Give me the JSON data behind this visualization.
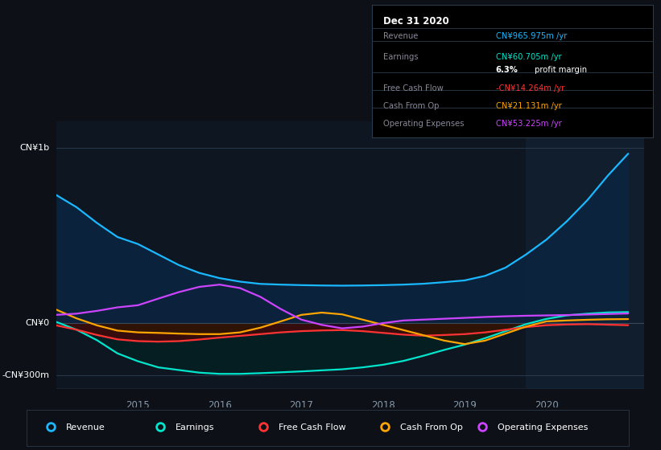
{
  "background_color": "#0d1117",
  "plot_bg_color": "#0e1621",
  "highlight_bg_color": "#111e2e",
  "x_min": 2014.0,
  "x_max": 2021.2,
  "y_min": -380,
  "y_max": 1150,
  "x_ticks": [
    2015,
    2016,
    2017,
    2018,
    2019,
    2020
  ],
  "ylabel_top": "CN¥1b",
  "ylabel_zero": "CN¥0",
  "ylabel_bottom": "-CN¥300m",
  "y_top_val": 1000,
  "y_zero_val": 0,
  "y_bottom_val": -300,
  "highlight_x_start": 2019.75,
  "info_box": {
    "title": "Dec 31 2020",
    "rows": [
      {
        "label": "Revenue",
        "value": "CN¥965.975m /yr",
        "value_color": "#1ab8ff"
      },
      {
        "label": "Earnings",
        "value": "CN¥60.705m /yr",
        "value_color": "#00e5cc"
      },
      {
        "label": "",
        "value": "6.3%",
        "value_color": "#ffffff",
        "suffix": " profit margin",
        "suffix_color": "#ffffff"
      },
      {
        "label": "Free Cash Flow",
        "value": "-CN¥14.264m /yr",
        "value_color": "#ff3333"
      },
      {
        "label": "Cash From Op",
        "value": "CN¥21.131m /yr",
        "value_color": "#ffa500"
      },
      {
        "label": "Operating Expenses",
        "value": "CN¥53.225m /yr",
        "value_color": "#cc44ff"
      }
    ]
  },
  "series": {
    "revenue": {
      "color": "#1ab8ff",
      "fill_color": "#0a2540",
      "fill_alpha": 0.85,
      "label": "Revenue",
      "x": [
        2014.0,
        2014.25,
        2014.5,
        2014.75,
        2015.0,
        2015.25,
        2015.5,
        2015.75,
        2016.0,
        2016.25,
        2016.5,
        2016.75,
        2017.0,
        2017.25,
        2017.5,
        2017.75,
        2018.0,
        2018.25,
        2018.5,
        2018.75,
        2019.0,
        2019.25,
        2019.5,
        2019.75,
        2020.0,
        2020.25,
        2020.5,
        2020.75,
        2021.0
      ],
      "y": [
        730,
        660,
        570,
        490,
        450,
        390,
        330,
        285,
        255,
        235,
        222,
        218,
        215,
        213,
        212,
        213,
        215,
        218,
        223,
        232,
        242,
        268,
        315,
        390,
        475,
        580,
        700,
        840,
        966
      ]
    },
    "earnings": {
      "color": "#00e5cc",
      "fill_color": "#002222",
      "fill_alpha": 0.7,
      "label": "Earnings",
      "x": [
        2014.0,
        2014.25,
        2014.5,
        2014.75,
        2015.0,
        2015.25,
        2015.5,
        2015.75,
        2016.0,
        2016.25,
        2016.5,
        2016.75,
        2017.0,
        2017.25,
        2017.5,
        2017.75,
        2018.0,
        2018.25,
        2018.5,
        2018.75,
        2019.0,
        2019.25,
        2019.5,
        2019.75,
        2020.0,
        2020.25,
        2020.5,
        2020.75,
        2021.0
      ],
      "y": [
        5,
        -40,
        -100,
        -175,
        -220,
        -255,
        -270,
        -285,
        -292,
        -292,
        -288,
        -283,
        -278,
        -272,
        -266,
        -255,
        -240,
        -218,
        -188,
        -155,
        -125,
        -88,
        -48,
        -8,
        22,
        42,
        52,
        59,
        61
      ]
    },
    "free_cash_flow": {
      "color": "#ff3333",
      "fill_color": "#5a0000",
      "fill_alpha": 0.6,
      "label": "Free Cash Flow",
      "x": [
        2014.0,
        2014.25,
        2014.5,
        2014.75,
        2015.0,
        2015.25,
        2015.5,
        2015.75,
        2016.0,
        2016.25,
        2016.5,
        2016.75,
        2017.0,
        2017.25,
        2017.5,
        2017.75,
        2018.0,
        2018.25,
        2018.5,
        2018.75,
        2019.0,
        2019.25,
        2019.5,
        2019.75,
        2020.0,
        2020.25,
        2020.5,
        2020.75,
        2021.0
      ],
      "y": [
        -15,
        -40,
        -70,
        -95,
        -105,
        -108,
        -105,
        -96,
        -85,
        -75,
        -65,
        -55,
        -48,
        -44,
        -42,
        -48,
        -58,
        -68,
        -74,
        -70,
        -65,
        -55,
        -40,
        -25,
        -14,
        -10,
        -8,
        -11,
        -14
      ]
    },
    "cash_from_op": {
      "color": "#ffa500",
      "fill_color": "#2a1a00",
      "fill_alpha": 0.6,
      "label": "Cash From Op",
      "x": [
        2014.0,
        2014.25,
        2014.5,
        2014.75,
        2015.0,
        2015.25,
        2015.5,
        2015.75,
        2016.0,
        2016.25,
        2016.5,
        2016.75,
        2017.0,
        2017.25,
        2017.5,
        2017.75,
        2018.0,
        2018.25,
        2018.5,
        2018.75,
        2019.0,
        2019.25,
        2019.5,
        2019.75,
        2020.0,
        2020.25,
        2020.5,
        2020.75,
        2021.0
      ],
      "y": [
        75,
        25,
        -15,
        -45,
        -55,
        -58,
        -62,
        -65,
        -65,
        -55,
        -28,
        8,
        45,
        58,
        48,
        18,
        -12,
        -42,
        -72,
        -102,
        -122,
        -102,
        -62,
        -22,
        8,
        13,
        17,
        20,
        21
      ]
    },
    "operating_expenses": {
      "color": "#cc44ff",
      "fill_color": "#200830",
      "fill_alpha": 0.7,
      "label": "Operating Expenses",
      "x": [
        2014.0,
        2014.25,
        2014.5,
        2014.75,
        2015.0,
        2015.25,
        2015.5,
        2015.75,
        2016.0,
        2016.25,
        2016.5,
        2016.75,
        2017.0,
        2017.25,
        2017.5,
        2017.75,
        2018.0,
        2018.25,
        2018.5,
        2018.75,
        2019.0,
        2019.25,
        2019.5,
        2019.75,
        2020.0,
        2020.25,
        2020.5,
        2020.75,
        2021.0
      ],
      "y": [
        45,
        52,
        68,
        88,
        100,
        138,
        175,
        205,
        218,
        198,
        148,
        78,
        18,
        -12,
        -32,
        -22,
        -2,
        13,
        18,
        23,
        28,
        33,
        37,
        40,
        42,
        44,
        47,
        50,
        53
      ]
    }
  },
  "legend": [
    {
      "label": "Revenue",
      "color": "#1ab8ff"
    },
    {
      "label": "Earnings",
      "color": "#00e5cc"
    },
    {
      "label": "Free Cash Flow",
      "color": "#ff3333"
    },
    {
      "label": "Cash From Op",
      "color": "#ffa500"
    },
    {
      "label": "Operating Expenses",
      "color": "#cc44ff"
    }
  ]
}
